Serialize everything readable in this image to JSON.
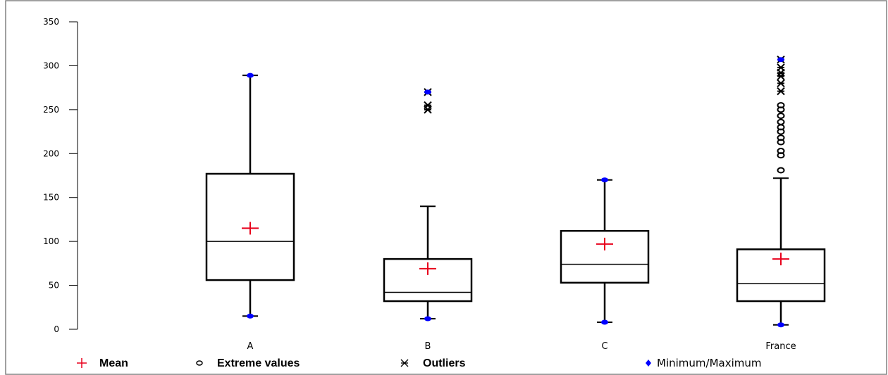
{
  "chart_data": {
    "type": "boxplot",
    "title": "",
    "xlabel": "",
    "ylabel": "",
    "ylim": [
      0,
      350
    ],
    "yticks": [
      0,
      50,
      100,
      150,
      200,
      250,
      300,
      350
    ],
    "categories": [
      "A",
      "B",
      "C",
      "France"
    ],
    "boxes": [
      {
        "category": "A",
        "min": 15,
        "q1": 56,
        "median": 100,
        "q3": 177,
        "max": 289,
        "mean": 115,
        "extreme_values": [],
        "outliers": []
      },
      {
        "category": "B",
        "min": 12,
        "q1": 32,
        "median": 42,
        "q3": 80,
        "max": 270,
        "whisker_high": 140,
        "mean": 69,
        "extreme_values": [],
        "outliers": [
          250,
          255,
          270
        ]
      },
      {
        "category": "C",
        "min": 8,
        "q1": 53,
        "median": 74,
        "q3": 112,
        "max": 170,
        "mean": 97,
        "extreme_values": [],
        "outliers": []
      },
      {
        "category": "France",
        "min": 5,
        "q1": 32,
        "median": 52,
        "q3": 91,
        "max": 307,
        "whisker_high": 172,
        "mean": 80,
        "extreme_values": [
          181,
          198,
          203,
          213,
          218,
          225,
          230,
          236,
          243,
          250,
          255
        ],
        "outliers": [
          271,
          280,
          288,
          292,
          298,
          307
        ]
      }
    ],
    "legend": {
      "position": "bottom",
      "items": [
        {
          "symbol": "mean",
          "label": "Mean",
          "color": "#e8001c"
        },
        {
          "symbol": "extreme",
          "label": "Extreme values",
          "color": "#000000"
        },
        {
          "symbol": "outlier",
          "label": "Outliers",
          "color": "#000000"
        },
        {
          "symbol": "minmax",
          "label": "Minimum/Maximum",
          "color": "#0000ff"
        }
      ]
    },
    "grid": false,
    "colors": {
      "mean": "#e8001c",
      "minmax": "#0000ff",
      "box": "#000000",
      "frame": "#808080"
    }
  }
}
